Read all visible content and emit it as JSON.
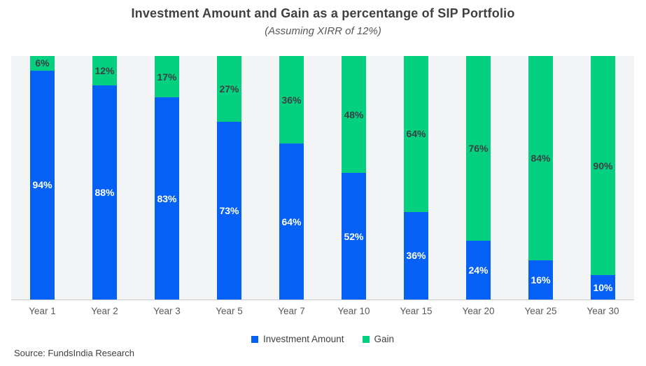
{
  "title": "Investment Amount and Gain as a percentange of SIP Portfolio",
  "subtitle": "(Assuming XIRR of 12%)",
  "source": "Source: FundsIndia Research",
  "colors": {
    "investment_blue": "#0561f5",
    "gain_green": "#05d07f",
    "plot_background": "#f3f4f5",
    "axis_line": "#c9ced3",
    "title_text": "#404040",
    "axis_text": "#595959"
  },
  "legend": [
    {
      "label": "Investment Amount",
      "color": "#0561f5"
    },
    {
      "label": "Gain",
      "color": "#05d07f"
    }
  ],
  "chart_data": {
    "type": "bar",
    "stacked": true,
    "title": "Investment Amount and Gain as a percentange of SIP Portfolio",
    "subtitle": "(Assuming XIRR of 12%)",
    "categories": [
      "Year 1",
      "Year 2",
      "Year 3",
      "Year 5",
      "Year 7",
      "Year 10",
      "Year 15",
      "Year 20",
      "Year 25",
      "Year 30"
    ],
    "series": [
      {
        "name": "Investment Amount",
        "color": "#0561f5",
        "label_color": "#ffffff",
        "values": [
          94,
          88,
          83,
          73,
          64,
          52,
          36,
          24,
          16,
          10
        ]
      },
      {
        "name": "Gain",
        "color": "#05d07f",
        "label_color": "#3b4045",
        "values": [
          6,
          12,
          17,
          27,
          36,
          48,
          64,
          76,
          84,
          90
        ]
      }
    ],
    "value_suffix": "%",
    "ylim": [
      0,
      100
    ],
    "grid": false,
    "y_axis_visible": false,
    "legend_position": "bottom",
    "plot_bg": "#f3f4f5"
  }
}
